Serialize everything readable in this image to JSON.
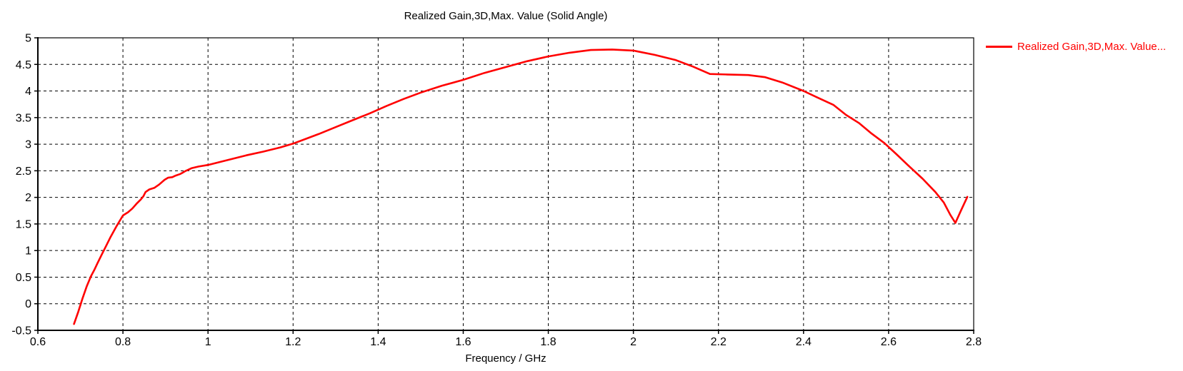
{
  "title": "Realized Gain,3D,Max. Value (Solid Angle)",
  "legend": {
    "label": "Realized Gain,3D,Max. Value...",
    "color": "#ff0000",
    "position": "right"
  },
  "x_axis": {
    "label": "Frequency / GHz",
    "tick_labels": [
      "0.6",
      "0.8",
      "1",
      "1.2",
      "1.4",
      "1.6",
      "1.8",
      "2",
      "2.2",
      "2.4",
      "2.6",
      "2.8"
    ],
    "tick_values": [
      0.6,
      0.8,
      1.0,
      1.2,
      1.4,
      1.6,
      1.8,
      2.0,
      2.2,
      2.4,
      2.6,
      2.8
    ]
  },
  "y_axis": {
    "label": "",
    "tick_labels": [
      "5",
      "4.5",
      "4",
      "3.5",
      "3",
      "2.5",
      "2",
      "1.5",
      "1",
      "0.5",
      "0",
      "-0.5"
    ],
    "tick_values": [
      5.0,
      4.5,
      4.0,
      3.5,
      3.0,
      2.5,
      2.0,
      1.5,
      1.0,
      0.5,
      0.0,
      -0.5
    ]
  },
  "colors": {
    "series": "#ff0000",
    "axis": "#000000",
    "grid": "#000000",
    "background": "#ffffff"
  },
  "chart_data": {
    "type": "line",
    "title": "Realized Gain,3D,Max. Value (Solid Angle)",
    "xlabel": "Frequency / GHz",
    "ylabel": "",
    "xlim": [
      0.6,
      2.8
    ],
    "ylim": [
      -0.5,
      5
    ],
    "grid": true,
    "grid_style": "dashed",
    "legend_position": "right",
    "series": [
      {
        "name": "Realized Gain,3D,Max. Value...",
        "color": "#ff0000",
        "x": [
          0.685,
          0.695,
          0.705,
          0.715,
          0.725,
          0.733,
          0.74,
          0.75,
          0.76,
          0.77,
          0.785,
          0.8,
          0.812,
          0.822,
          0.832,
          0.842,
          0.848,
          0.853,
          0.862,
          0.874,
          0.885,
          0.898,
          0.906,
          0.916,
          0.924,
          0.935,
          0.948,
          0.962,
          0.978,
          1.0,
          1.03,
          1.06,
          1.09,
          1.13,
          1.17,
          1.2,
          1.23,
          1.26,
          1.3,
          1.34,
          1.38,
          1.42,
          1.46,
          1.5,
          1.55,
          1.6,
          1.65,
          1.7,
          1.75,
          1.8,
          1.85,
          1.9,
          1.95,
          2.0,
          2.05,
          2.1,
          2.14,
          2.18,
          2.22,
          2.27,
          2.31,
          2.35,
          2.4,
          2.44,
          2.47,
          2.5,
          2.53,
          2.56,
          2.59,
          2.62,
          2.65,
          2.68,
          2.71,
          2.73,
          2.745,
          2.757,
          2.77,
          2.785
        ],
        "y": [
          -0.38,
          -0.15,
          0.1,
          0.33,
          0.52,
          0.64,
          0.76,
          0.92,
          1.08,
          1.24,
          1.46,
          1.66,
          1.72,
          1.79,
          1.88,
          1.96,
          2.02,
          2.1,
          2.15,
          2.18,
          2.24,
          2.33,
          2.37,
          2.38,
          2.41,
          2.44,
          2.5,
          2.55,
          2.58,
          2.61,
          2.67,
          2.73,
          2.79,
          2.86,
          2.94,
          3.01,
          3.1,
          3.19,
          3.32,
          3.45,
          3.58,
          3.72,
          3.85,
          3.97,
          4.1,
          4.21,
          4.34,
          4.45,
          4.56,
          4.65,
          4.72,
          4.77,
          4.78,
          4.76,
          4.68,
          4.58,
          4.46,
          4.32,
          4.31,
          4.3,
          4.26,
          4.16,
          4.0,
          3.85,
          3.74,
          3.55,
          3.4,
          3.2,
          3.02,
          2.8,
          2.57,
          2.35,
          2.1,
          1.9,
          1.67,
          1.52,
          1.75,
          2.01
        ]
      }
    ]
  }
}
